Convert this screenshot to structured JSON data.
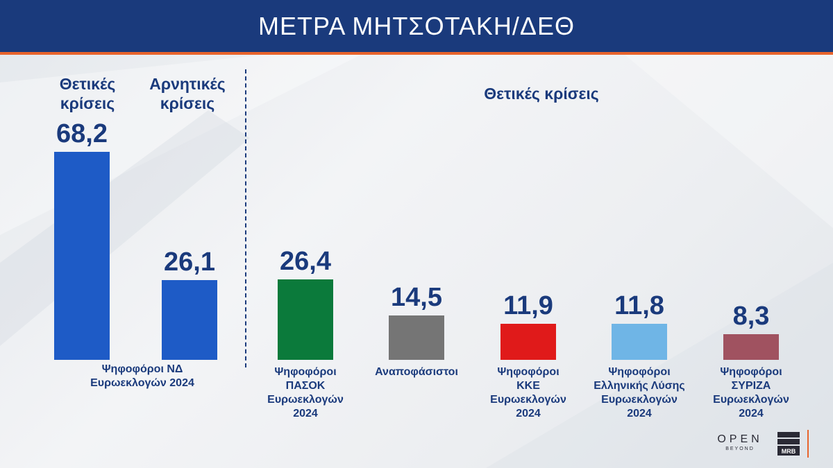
{
  "header": {
    "title": "ΜΕΤΡΑ ΜΗΤΣΟΤΑΚΗ/ΔΕΘ"
  },
  "sections": {
    "positive_left": "Θετικές\nκρίσεις",
    "negative_left": "Αρνητικές\nκρίσεις",
    "positive_right": "Θετικές κρίσεις"
  },
  "colors": {
    "header_bg": "#1a3a7c",
    "accent": "#e8642c",
    "text": "#1a3a7c",
    "nd": "#1e5bc6",
    "pasok": "#0b7a3b",
    "undecided": "#757575",
    "kke": "#e01a1a",
    "elliniki_lysi": "#6fb5e6",
    "syriza": "#a05260"
  },
  "logos": {
    "open": "OPEN",
    "open_sub": "BEYOND",
    "mrb": "MRB"
  },
  "chart_data": {
    "type": "bar",
    "ylim": [
      0,
      68.2
    ],
    "bars": [
      {
        "value": 68.2,
        "label": "68,2",
        "color": "#1e5bc6",
        "category": "Θετικές κρίσεις"
      },
      {
        "value": 26.1,
        "label": "26,1",
        "color": "#1e5bc6",
        "category": "Αρνητικές κρίσεις"
      },
      {
        "value": 26.4,
        "label": "26,4",
        "color": "#0b7a3b",
        "category": "Ψηφοφόροι\nΠΑΣΟΚ\nΕυρωεκλογών\n2024"
      },
      {
        "value": 14.5,
        "label": "14,5",
        "color": "#757575",
        "category": "Αναποφάσιστοι"
      },
      {
        "value": 11.9,
        "label": "11,9",
        "color": "#e01a1a",
        "category": "Ψηφοφόροι\nΚΚΕ\nΕυρωεκλογών\n2024"
      },
      {
        "value": 11.8,
        "label": "11,8",
        "color": "#6fb5e6",
        "category": "Ψηφοφόροι\nΕλληνικής Λύσης\nΕυρωεκλογών\n2024"
      },
      {
        "value": 8.3,
        "label": "8,3",
        "color": "#a05260",
        "category": "Ψηφοφόροι\nΣΥΡΙΖΑ\nΕυρωεκλογών\n2024"
      }
    ],
    "group_label": "Ψηφοφόροι ΝΔ\nΕυρωεκλογών 2024"
  }
}
